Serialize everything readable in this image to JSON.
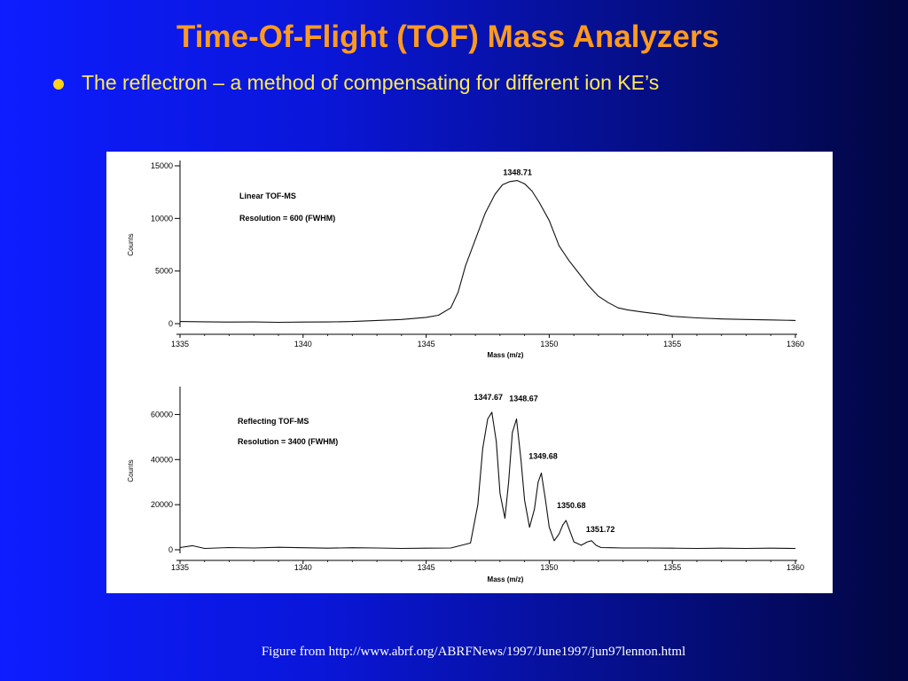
{
  "slide": {
    "title": "Time-Of-Flight (TOF) Mass Analyzers",
    "bullet": "The reflectron – a method of compensating for different ion KE’s",
    "caption": "Figure from http://www.abrf.org/ABRFNews/1997/June1997/jun97lennon.html",
    "colors": {
      "title": "#ff9a1f",
      "bullet": "#ffea55",
      "bullet_dot": "#ffd21a",
      "caption": "#ffffff"
    }
  },
  "chart_data": [
    {
      "type": "line",
      "annotations": [
        "Linear TOF-MS",
        "Resolution = 600 (FWHM)"
      ],
      "xlabel": "Mass (m/z)",
      "ylabel": "Counts",
      "xlim": [
        1335,
        1360
      ],
      "ylim": [
        0,
        15000
      ],
      "xticks": [
        1335,
        1340,
        1345,
        1350,
        1355,
        1360
      ],
      "yticks": [
        0,
        5000,
        10000,
        15000
      ],
      "peak_labels": [
        {
          "x": 1348.71,
          "y": 13600,
          "text": "1348.71"
        }
      ],
      "series": [
        {
          "x": [
            1335,
            1336,
            1337,
            1338,
            1339,
            1340,
            1341,
            1342,
            1343,
            1344,
            1345,
            1345.5,
            1346,
            1346.3,
            1346.6,
            1347,
            1347.4,
            1347.8,
            1348.1,
            1348.4,
            1348.7,
            1349,
            1349.3,
            1349.6,
            1350,
            1350.4,
            1350.8,
            1351.2,
            1351.6,
            1352,
            1352.4,
            1352.8,
            1353.2,
            1353.8,
            1354.5,
            1355,
            1356,
            1357,
            1358,
            1359,
            1360
          ],
          "y": [
            200,
            180,
            150,
            160,
            130,
            150,
            160,
            200,
            300,
            400,
            600,
            800,
            1500,
            3000,
            5500,
            8000,
            10500,
            12300,
            13200,
            13500,
            13600,
            13300,
            12600,
            11500,
            9800,
            7400,
            6000,
            4800,
            3600,
            2600,
            2000,
            1500,
            1300,
            1100,
            900,
            700,
            550,
            450,
            400,
            350,
            300
          ]
        }
      ]
    },
    {
      "type": "line",
      "annotations": [
        "Reflecting TOF-MS",
        "Resolution = 3400 (FWHM)"
      ],
      "xlabel": "Mass (m/z)",
      "ylabel": "Counts",
      "xlim": [
        1335,
        1360
      ],
      "ylim": [
        0,
        70000
      ],
      "xticks": [
        1335,
        1340,
        1345,
        1350,
        1355,
        1360
      ],
      "yticks": [
        0,
        20000,
        40000,
        60000
      ],
      "peak_labels": [
        {
          "x": 1347.67,
          "y": 61000,
          "text": "1347.67"
        },
        {
          "x": 1348.67,
          "y": 58000,
          "text": "1348.67"
        },
        {
          "x": 1349.68,
          "y": 34000,
          "text": "1349.68"
        },
        {
          "x": 1350.68,
          "y": 13000,
          "text": "1350.68"
        },
        {
          "x": 1351.72,
          "y": 4000,
          "text": "1351.72"
        }
      ],
      "series": [
        {
          "x": [
            1335,
            1335.5,
            1336,
            1337,
            1338,
            1339,
            1340,
            1341,
            1342,
            1343,
            1344,
            1345,
            1346,
            1346.8,
            1347.1,
            1347.3,
            1347.5,
            1347.67,
            1347.85,
            1348,
            1348.2,
            1348.35,
            1348.5,
            1348.67,
            1348.85,
            1349,
            1349.2,
            1349.4,
            1349.55,
            1349.68,
            1349.85,
            1350,
            1350.2,
            1350.4,
            1350.55,
            1350.68,
            1350.85,
            1351,
            1351.3,
            1351.55,
            1351.72,
            1351.9,
            1352.1,
            1352.5,
            1353,
            1354,
            1355,
            1356,
            1357,
            1358,
            1359,
            1360
          ],
          "y": [
            1000,
            1800,
            600,
            1000,
            800,
            1100,
            900,
            700,
            900,
            800,
            600,
            700,
            800,
            3000,
            20000,
            45000,
            58000,
            61000,
            48000,
            25000,
            14000,
            30000,
            52000,
            58000,
            40000,
            22000,
            10000,
            18000,
            30000,
            34000,
            22000,
            10000,
            4000,
            7000,
            11000,
            13000,
            8000,
            3500,
            2000,
            3500,
            4000,
            2000,
            1000,
            900,
            800,
            800,
            700,
            600,
            700,
            600,
            700,
            600
          ]
        }
      ]
    }
  ]
}
